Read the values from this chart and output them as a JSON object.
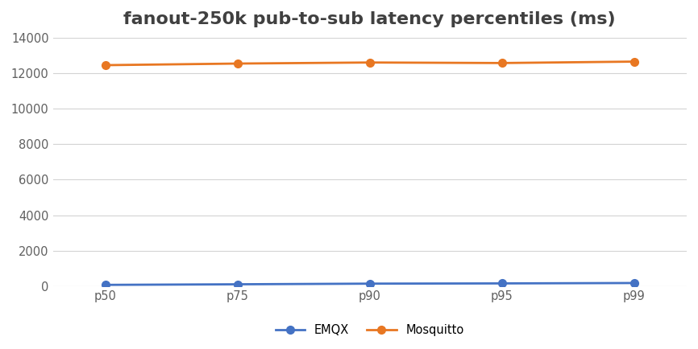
{
  "title": "fanout-250k pub-to-sub latency percentiles (ms)",
  "categories": [
    "p50",
    "p75",
    "p90",
    "p95",
    "p99"
  ],
  "emqx_values": [
    74,
    107,
    143,
    156,
    178
  ],
  "mosquitto_values": [
    12440,
    12530,
    12590,
    12560,
    12640
  ],
  "emqx_color": "#4472c4",
  "mosquitto_color": "#e87722",
  "ylim": [
    0,
    14000
  ],
  "yticks": [
    0,
    2000,
    4000,
    6000,
    8000,
    10000,
    12000,
    14000
  ],
  "background_color": "#ffffff",
  "grid_color": "#d3d3d3",
  "legend_labels": [
    "EMQX",
    "Mosquitto"
  ],
  "title_fontsize": 16,
  "title_color": "#404040",
  "tick_fontsize": 10.5,
  "tick_color": "#606060",
  "legend_fontsize": 10.5,
  "line_width": 2.0,
  "marker": "o",
  "marker_size": 7
}
